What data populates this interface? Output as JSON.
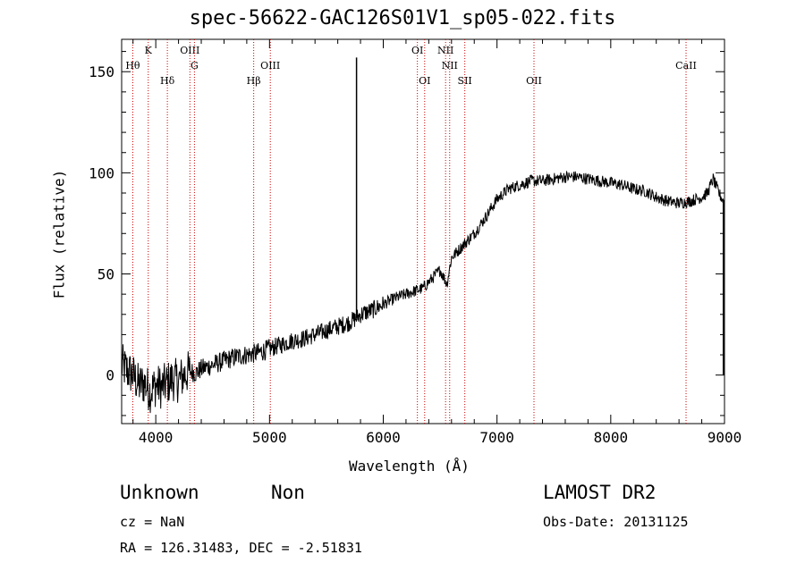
{
  "chart_data": {
    "type": "line",
    "title": "spec-56622-GAC126S01V1_sp05-022.fits",
    "xlabel": "Wavelength (Å)",
    "ylabel": "Flux (relative)",
    "xlim": [
      3700,
      9000
    ],
    "ylim": [
      -24,
      166
    ],
    "xticks": [
      4000,
      5000,
      6000,
      7000,
      8000,
      9000
    ],
    "yticks": [
      0,
      50,
      100,
      150
    ],
    "grid": false,
    "line_color": "#000000",
    "marker_color": "#cc0000",
    "series": [
      {
        "x": [
          3700,
          3750,
          3800,
          3850,
          3900,
          3950,
          4000,
          4050,
          4100,
          4150,
          4200,
          4250,
          4300,
          4350,
          4400,
          4500,
          4600,
          4700,
          4800,
          4900,
          5000,
          5100,
          5200,
          5300,
          5400,
          5500,
          5600,
          5700,
          5760,
          5800,
          5900,
          6000,
          6100,
          6200,
          6300,
          6350,
          6400,
          6500,
          6560,
          6600,
          6700,
          6800,
          6900,
          7000,
          7100,
          7200,
          7300,
          7400,
          7500,
          7600,
          7700,
          7800,
          7900,
          8000,
          8100,
          8200,
          8300,
          8400,
          8500,
          8600,
          8700,
          8800,
          8850,
          8900,
          8950,
          9000
        ],
        "y": [
          5,
          2,
          0,
          -5,
          -4,
          -8,
          -5,
          -6,
          -4,
          -2,
          -3,
          0,
          2,
          1,
          3,
          5,
          7,
          9,
          10,
          11,
          13,
          15,
          17,
          18,
          20,
          22,
          24,
          26,
          28,
          30,
          32,
          35,
          38,
          40,
          42,
          43,
          46,
          52,
          45,
          58,
          64,
          70,
          78,
          87,
          92,
          94,
          96,
          96,
          97,
          98,
          98,
          97,
          96,
          95,
          94,
          92,
          91,
          88,
          86,
          85,
          86,
          88,
          90,
          97,
          90,
          85
        ]
      }
    ],
    "spikes": [
      {
        "x": 5765,
        "y": 157
      },
      {
        "x": 8990,
        "y": 0
      }
    ],
    "lines": [
      {
        "label": "Hθ",
        "x": 3798,
        "row": 2
      },
      {
        "label": "K",
        "x": 3934,
        "row": 1
      },
      {
        "label": "Hδ",
        "x": 4102,
        "row": 3
      },
      {
        "label": "OIII",
        "x": 4300,
        "row": 1
      },
      {
        "label": "G",
        "x": 4340,
        "row": 2
      },
      {
        "label": "Hβ",
        "x": 4861,
        "row": 3
      },
      {
        "label": "OIII",
        "x": 5007,
        "row": 2
      },
      {
        "label": "OI",
        "x": 6300,
        "row": 1
      },
      {
        "label": "OI",
        "x": 6364,
        "row": 3
      },
      {
        "label": "NII",
        "x": 6548,
        "row": 1
      },
      {
        "label": "NII",
        "x": 6584,
        "row": 2
      },
      {
        "label": "SII",
        "x": 6717,
        "row": 3
      },
      {
        "label": "OII",
        "x": 7325,
        "row": 3
      },
      {
        "label": "CaII",
        "x": 8662,
        "row": 2
      }
    ]
  },
  "info": {
    "class": "Unknown",
    "subclass": "Non",
    "survey": "LAMOST DR2",
    "cz": "cz = NaN",
    "obs_date": "Obs-Date: 20131125",
    "coords": "RA = 126.31483, DEC =  -2.51831"
  }
}
